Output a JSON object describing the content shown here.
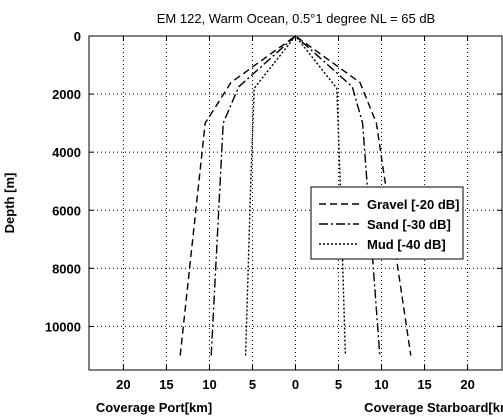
{
  "chart_data": {
    "type": "line",
    "title": "EM 122, Warm Ocean, 0.5°1 degree   NL = 65 dB",
    "ylabel": "Depth [m]",
    "xlabel_left": "Coverage Port[km]",
    "xlabel_right": "Coverage Starboard[km]",
    "xlim": [
      -24,
      24
    ],
    "ylim": [
      0,
      11500
    ],
    "y_inverted": true,
    "grid": true,
    "legend_position": "center-right",
    "x_ticks": [
      {
        "value": -20,
        "label": "20"
      },
      {
        "value": -15,
        "label": "15"
      },
      {
        "value": -10,
        "label": "10"
      },
      {
        "value": -5,
        "label": "5"
      },
      {
        "value": 0,
        "label": "0"
      },
      {
        "value": 5,
        "label": "5"
      },
      {
        "value": 10,
        "label": "10"
      },
      {
        "value": 15,
        "label": "15"
      },
      {
        "value": 20,
        "label": "20"
      }
    ],
    "y_ticks": [
      {
        "value": 0,
        "label": "0"
      },
      {
        "value": 2000,
        "label": "2000"
      },
      {
        "value": 4000,
        "label": "4000"
      },
      {
        "value": 6000,
        "label": "6000"
      },
      {
        "value": 8000,
        "label": "8000"
      },
      {
        "value": 10000,
        "label": "10000"
      }
    ],
    "series": [
      {
        "name": "Gravel [-20 dB]",
        "dash": "7,4",
        "points": [
          [
            -13.4,
            11000
          ],
          [
            -10.5,
            3000
          ],
          [
            -7.5,
            1600
          ],
          [
            0,
            0
          ],
          [
            7.5,
            1600
          ],
          [
            9.4,
            3000
          ],
          [
            13.4,
            11000
          ]
        ]
      },
      {
        "name": "Sand [-30 dB]",
        "dash": "9,3,2,3",
        "points": [
          [
            -9.8,
            11000
          ],
          [
            -8.4,
            3000
          ],
          [
            -6.6,
            1750
          ],
          [
            0,
            0
          ],
          [
            6.6,
            1750
          ],
          [
            7.8,
            3000
          ],
          [
            9.8,
            11000
          ]
        ]
      },
      {
        "name": "Mud [-40 dB]",
        "dash": "2,2",
        "points": [
          [
            -5.8,
            11000
          ],
          [
            -5.2,
            5000
          ],
          [
            -4.8,
            1800
          ],
          [
            0,
            0
          ],
          [
            4.8,
            1800
          ],
          [
            5.2,
            5000
          ],
          [
            5.8,
            11000
          ]
        ]
      }
    ]
  }
}
